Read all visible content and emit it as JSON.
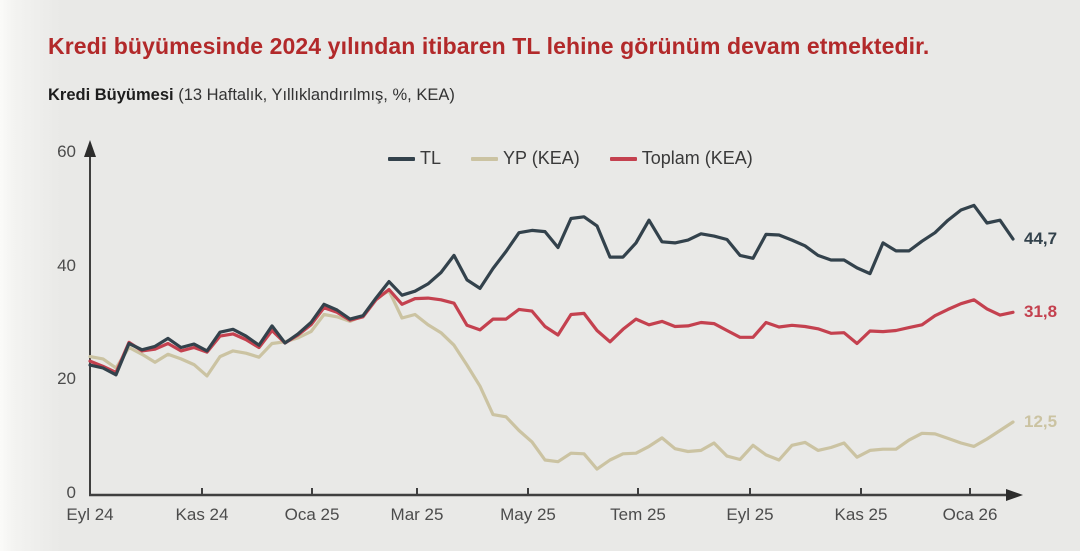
{
  "title": "Kredi büyümesinde 2024 yılından itibaren TL lehine görünüm devam etmektedir.",
  "subtitle_bold": "Kredi Büyümesi",
  "subtitle_rest": " (13 Haftalık, Yıllıklandırılmış, %, KEA)",
  "colors": {
    "background": "#e9e9e7",
    "title_red": "#b2292a",
    "axis": "#3f3f3f",
    "tick_text": "#4c4c4c"
  },
  "chart_data": {
    "type": "line",
    "title": "Kredi Büyümesi (13 Haftalık, Yıllıklandırılmış, %, KEA)",
    "xlabel": "",
    "ylabel": "",
    "ylim": [
      0,
      60
    ],
    "y_ticks": [
      "0",
      "20",
      "40",
      "60"
    ],
    "y_tick_values": [
      0,
      20,
      40,
      60
    ],
    "x_tick_labels": [
      "Eyl 24",
      "Kas 24",
      "Oca 25",
      "Mar 25",
      "May 25",
      "Tem 25",
      "Eyl 25",
      "Kas 25",
      "Oca 26"
    ],
    "grid": false,
    "legend_position": "top-center",
    "frequency": "weekly",
    "series": [
      {
        "name": "TL",
        "color": "#33424c",
        "end_label": "44,7",
        "end_value": 44.7,
        "z": 3,
        "values": [
          22.5,
          22.0,
          20.8,
          26.3,
          25.2,
          25.8,
          27.2,
          25.6,
          26.2,
          25.0,
          28.3,
          28.8,
          27.6,
          26.0,
          29.4,
          26.4,
          28.0,
          30.0,
          33.2,
          32.2,
          30.6,
          31.2,
          34.3,
          37.2,
          34.8,
          35.5,
          36.8,
          38.8,
          41.8,
          37.5,
          36.0,
          39.5,
          42.5,
          45.8,
          46.2,
          46.0,
          43.2,
          48.3,
          48.6,
          47.0,
          41.5,
          41.5,
          44.0,
          48.0,
          44.2,
          44.0,
          44.5,
          45.6,
          45.2,
          44.6,
          41.8,
          41.3,
          45.5,
          45.4,
          44.5,
          43.5,
          41.8,
          41.0,
          41.0,
          39.6,
          38.6,
          44.0,
          42.6,
          42.6,
          44.3,
          45.8,
          48.0,
          49.8,
          50.6,
          47.5,
          48.0,
          44.7
        ]
      },
      {
        "name": "YP (KEA)",
        "color": "#cbc3a2",
        "end_label": "12,5",
        "end_value": 12.5,
        "z": 1,
        "values": [
          24.0,
          23.6,
          22.0,
          25.6,
          24.4,
          23.0,
          24.4,
          23.6,
          22.6,
          20.6,
          24.0,
          25.0,
          24.6,
          23.9,
          26.3,
          26.6,
          27.3,
          28.4,
          31.4,
          31.0,
          30.2,
          31.2,
          34.2,
          35.6,
          30.8,
          31.4,
          29.6,
          28.2,
          26.0,
          22.5,
          18.8,
          13.8,
          13.4,
          11.0,
          9.0,
          5.8,
          5.5,
          7.0,
          6.9,
          4.2,
          5.8,
          6.9,
          7.0,
          8.2,
          9.7,
          7.8,
          7.3,
          7.5,
          8.8,
          6.5,
          5.9,
          8.4,
          6.7,
          5.8,
          8.4,
          8.9,
          7.5,
          8.0,
          8.8,
          6.3,
          7.5,
          7.7,
          7.7,
          9.3,
          10.5,
          10.4,
          9.6,
          8.8,
          8.2,
          9.5,
          11.0,
          12.5
        ]
      },
      {
        "name": "Toplam (KEA)",
        "color": "#c4414f",
        "end_label": "31,8",
        "end_value": 31.8,
        "z": 2,
        "values": [
          23.2,
          22.3,
          21.2,
          26.5,
          25.0,
          25.3,
          26.3,
          25.0,
          25.6,
          24.8,
          27.6,
          28.0,
          27.0,
          25.6,
          28.6,
          26.4,
          27.8,
          29.6,
          32.6,
          31.8,
          30.4,
          31.0,
          34.0,
          35.8,
          33.2,
          34.2,
          34.3,
          34.0,
          33.4,
          29.5,
          28.7,
          30.6,
          30.6,
          32.3,
          32.0,
          29.3,
          27.8,
          31.4,
          31.6,
          28.6,
          26.6,
          28.8,
          30.6,
          29.6,
          30.2,
          29.3,
          29.4,
          30.0,
          29.8,
          28.6,
          27.4,
          27.4,
          30.0,
          29.2,
          29.5,
          29.3,
          28.9,
          28.1,
          28.2,
          26.3,
          28.5,
          28.4,
          28.6,
          29.1,
          29.6,
          31.2,
          32.3,
          33.3,
          34.0,
          32.4,
          31.3,
          31.8
        ]
      }
    ]
  }
}
